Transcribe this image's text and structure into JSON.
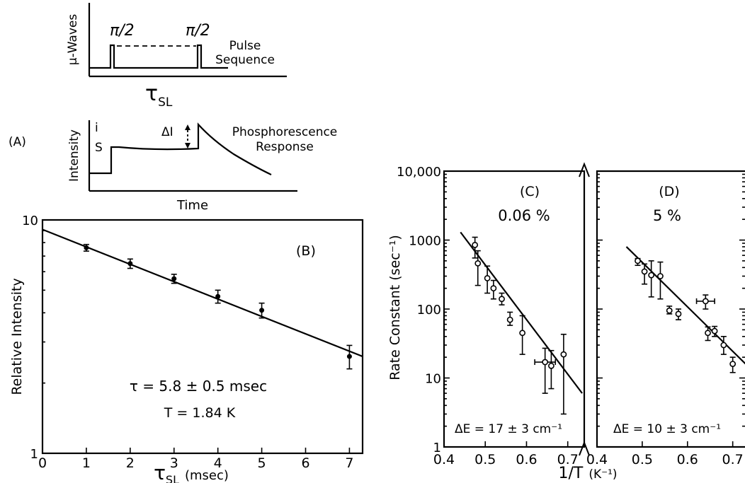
{
  "panel_a": {
    "label": "(A)",
    "pulse_ylabel": "μ-Waves",
    "pulse1_label": "π/2",
    "pulse2_label": "π/2",
    "pulse_title_l1": "Pulse",
    "pulse_title_l2": "Sequence",
    "tau_label": "τ",
    "tau_sub": "SL",
    "resp_ylabel": "Intensity",
    "level_i": "i",
    "level_s": "S",
    "delta_label": "ΔI",
    "resp_title_l1": "Phosphorescence",
    "resp_title_l2": "Response",
    "resp_xlabel": "Time"
  },
  "chart_data": [
    {
      "type": "scatter",
      "panel": "(B)",
      "title": "",
      "xlabel": "τ",
      "xlabel_sub": "SL",
      "xlabel_unit": "(msec)",
      "ylabel": "Relative Intensity",
      "y_scale": "log",
      "xlim": [
        0,
        7.3
      ],
      "ylim": [
        1,
        10
      ],
      "x_ticks": [
        "0",
        "1",
        "2",
        "3",
        "4",
        "5",
        "6",
        "7"
      ],
      "y_ticks": [
        "1",
        "10"
      ],
      "annotation_tau": "τ = 5.8 ± 0.5 msec",
      "annotation_T": "T = 1.84 K",
      "points": [
        {
          "x": 1,
          "y": 7.6,
          "yerr": 0.25
        },
        {
          "x": 2,
          "y": 6.5,
          "yerr": 0.3
        },
        {
          "x": 3,
          "y": 5.6,
          "yerr": 0.25
        },
        {
          "x": 4,
          "y": 4.7,
          "yerr": 0.3
        },
        {
          "x": 5,
          "y": 4.1,
          "yerr": 0.3
        },
        {
          "x": 7,
          "y": 2.6,
          "yerr": 0.3
        }
      ],
      "fit": {
        "x": [
          0,
          7.3
        ],
        "y": [
          9.1,
          2.6
        ]
      }
    },
    {
      "type": "scatter",
      "panel": "(C)",
      "title": "0.06 %",
      "xlabel": "1/T",
      "xlabel_unit": "(K⁻¹)",
      "ylabel": "Rate Constant (sec⁻¹)",
      "y_scale": "log",
      "xlim": [
        0.4,
        0.74
      ],
      "ylim": [
        1,
        10000
      ],
      "x_ticks": [
        "0.4",
        "0.5",
        "0.6",
        "0.7"
      ],
      "y_ticks": [
        "1",
        "10",
        "100",
        "1000",
        "10,000"
      ],
      "annotation": "ΔE = 17 ± 3 cm⁻¹",
      "points": [
        {
          "x": 0.475,
          "y": 850,
          "ylo": 550,
          "yhi": 1100
        },
        {
          "x": 0.482,
          "y": 460,
          "ylo": 220,
          "yhi": 700
        },
        {
          "x": 0.505,
          "y": 280,
          "ylo": 170,
          "yhi": 420
        },
        {
          "x": 0.52,
          "y": 200,
          "ylo": 140,
          "yhi": 260
        },
        {
          "x": 0.54,
          "y": 140,
          "ylo": 115,
          "yhi": 170
        },
        {
          "x": 0.56,
          "y": 70,
          "ylo": 58,
          "yhi": 90
        },
        {
          "x": 0.59,
          "y": 45,
          "ylo": 22,
          "yhi": 80
        },
        {
          "x": 0.645,
          "y": 17,
          "ylo": 6,
          "yhi": 27,
          "xerr": 0.025
        },
        {
          "x": 0.66,
          "y": 15,
          "ylo": 7,
          "yhi": 25
        },
        {
          "x": 0.69,
          "y": 22,
          "ylo": 3,
          "yhi": 43
        }
      ],
      "fit": {
        "x": [
          0.44,
          0.735
        ],
        "y": [
          1300,
          6
        ]
      }
    },
    {
      "type": "scatter",
      "panel": "(D)",
      "title": "5 %",
      "xlabel": "",
      "y_scale": "log",
      "xlim": [
        0.4,
        0.76
      ],
      "ylim": [
        1,
        10000
      ],
      "x_ticks": [
        "0.4",
        "0.5",
        "0.6",
        "0.7"
      ],
      "annotation": "ΔE = 10 ± 3 cm⁻¹",
      "points": [
        {
          "x": 0.49,
          "y": 500,
          "ylo": 430,
          "yhi": 540
        },
        {
          "x": 0.505,
          "y": 350,
          "ylo": 230,
          "yhi": 450
        },
        {
          "x": 0.52,
          "y": 310,
          "ylo": 150,
          "yhi": 500
        },
        {
          "x": 0.54,
          "y": 300,
          "ylo": 140,
          "yhi": 480
        },
        {
          "x": 0.56,
          "y": 95,
          "ylo": 85,
          "yhi": 110
        },
        {
          "x": 0.58,
          "y": 85,
          "ylo": 70,
          "yhi": 100
        },
        {
          "x": 0.64,
          "y": 130,
          "ylo": 100,
          "yhi": 160,
          "xerr": 0.02
        },
        {
          "x": 0.645,
          "y": 45,
          "ylo": 35,
          "yhi": 55
        },
        {
          "x": 0.66,
          "y": 48,
          "ylo": 40,
          "yhi": 56
        },
        {
          "x": 0.68,
          "y": 30,
          "ylo": 22,
          "yhi": 40
        },
        {
          "x": 0.7,
          "y": 16,
          "ylo": 12,
          "yhi": 20
        }
      ],
      "fit": {
        "x": [
          0.465,
          0.76
        ],
        "y": [
          800,
          10
        ]
      }
    }
  ]
}
